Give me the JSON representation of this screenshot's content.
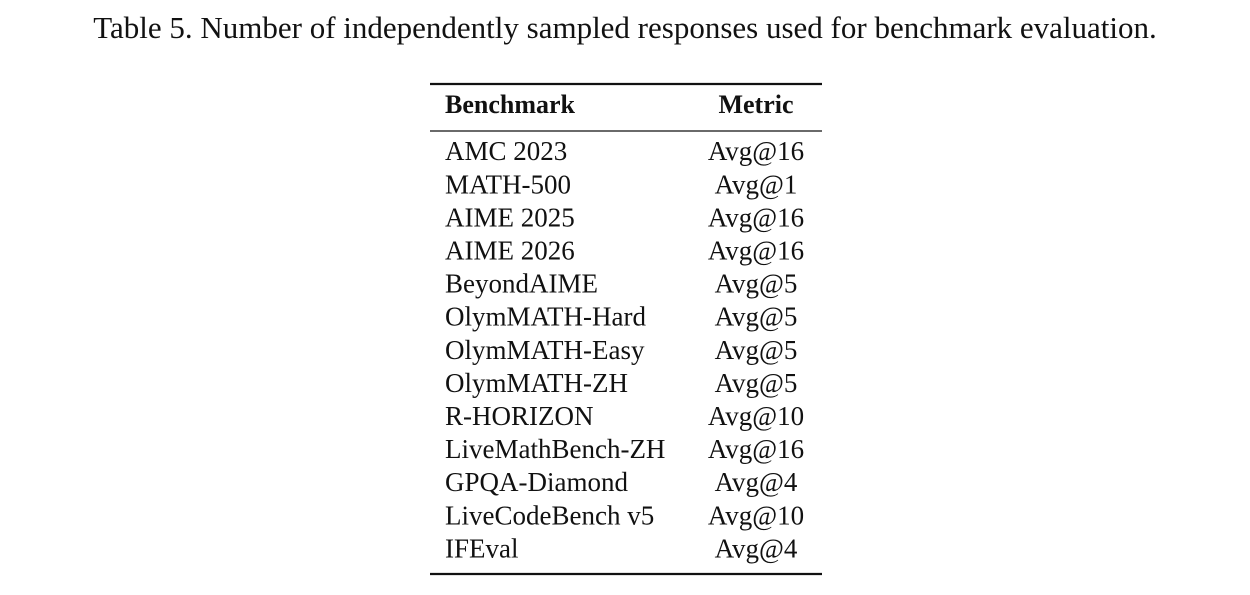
{
  "caption": "Table 5. Number of independently sampled responses used for benchmark evaluation.",
  "table": {
    "header": [
      "Benchmark",
      "Metric"
    ],
    "rows": [
      [
        "AMC 2023",
        "Avg@16"
      ],
      [
        "MATH-500",
        "Avg@1"
      ],
      [
        "AIME 2025",
        "Avg@16"
      ],
      [
        "AIME 2026",
        "Avg@16"
      ],
      [
        "BeyondAIME",
        "Avg@5"
      ],
      [
        "OlymMATH-Hard",
        "Avg@5"
      ],
      [
        "OlymMATH-Easy",
        "Avg@5"
      ],
      [
        "OlymMATH-ZH",
        "Avg@5"
      ],
      [
        "R-HORIZON",
        "Avg@10"
      ],
      [
        "LiveMathBench-ZH",
        "Avg@16"
      ],
      [
        "GPQA-Diamond",
        "Avg@4"
      ],
      [
        "LiveCodeBench v5",
        "Avg@10"
      ],
      [
        "IFEval",
        "Avg@4"
      ]
    ]
  }
}
